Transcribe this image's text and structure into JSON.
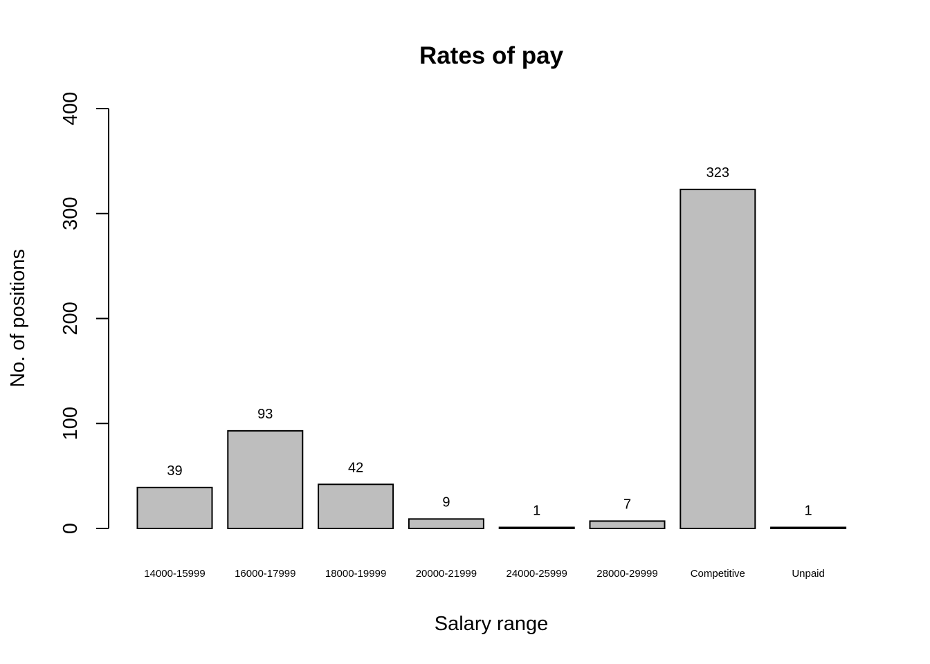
{
  "chart_data": {
    "type": "bar",
    "title": "Rates of pay",
    "xlabel": "Salary range",
    "ylabel": "No. of positions",
    "categories": [
      "14000-15999",
      "16000-17999",
      "18000-19999",
      "20000-21999",
      "24000-25999",
      "28000-29999",
      "Competitive",
      "Unpaid"
    ],
    "values": [
      39,
      93,
      42,
      9,
      1,
      7,
      323,
      1
    ],
    "data_labels": [
      "39",
      "93",
      "42",
      "9",
      "1",
      "7",
      "323",
      "1"
    ],
    "ylim": [
      0,
      400
    ],
    "yticks": [
      0,
      100,
      200,
      300,
      400
    ],
    "ytick_labels": [
      "0",
      "100",
      "200",
      "300",
      "400"
    ],
    "bar_color": "#bebebe",
    "grid": false,
    "legend": "none"
  }
}
